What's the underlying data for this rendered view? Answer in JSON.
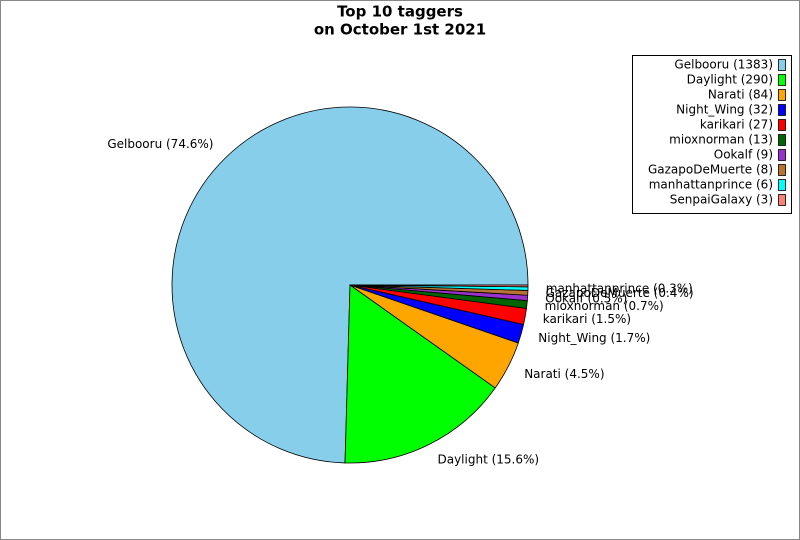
{
  "chart_data": {
    "type": "pie",
    "title": [
      "Top 10 taggers",
      "on October 1st 2021"
    ],
    "categories": [
      "Gelbooru",
      "Daylight",
      "Narati",
      "Night_Wing",
      "karikari",
      "mioxnorman",
      "Ookalf",
      "GazapoDeMuerte",
      "manhattanprince",
      "SenpaiGalaxy"
    ],
    "values": [
      1383,
      290,
      84,
      32,
      27,
      13,
      9,
      8,
      6,
      3
    ],
    "legend_labels": [
      "Gelbooru (1383)",
      "Daylight (290)",
      "Narati (84)",
      "Night_Wing (32)",
      "karikari (27)",
      "mioxnorman (13)",
      "Ookalf (9)",
      "GazapoDeMuerte (8)",
      "manhattanprince (6)",
      "SenpaiGalaxy (3)"
    ],
    "slice_labels": [
      "Gelbooru (74.6%)",
      "Daylight (15.6%)",
      "Narati (4.5%)",
      "Night_Wing (1.7%)",
      "karikari (1.5%)",
      "mioxnorman (0.7%)",
      "Ookalf (0.5%)",
      "GazapoDeMuerte (0.4%)",
      "manhattanprince (0.3%)",
      null
    ],
    "colors": [
      "#87ceeb",
      "#00ff00",
      "#ffa500",
      "#0000ff",
      "#ff0000",
      "#006400",
      "#9932cc",
      "#b87333",
      "#00ffff",
      "#fa8072"
    ],
    "legend": "upper right"
  }
}
